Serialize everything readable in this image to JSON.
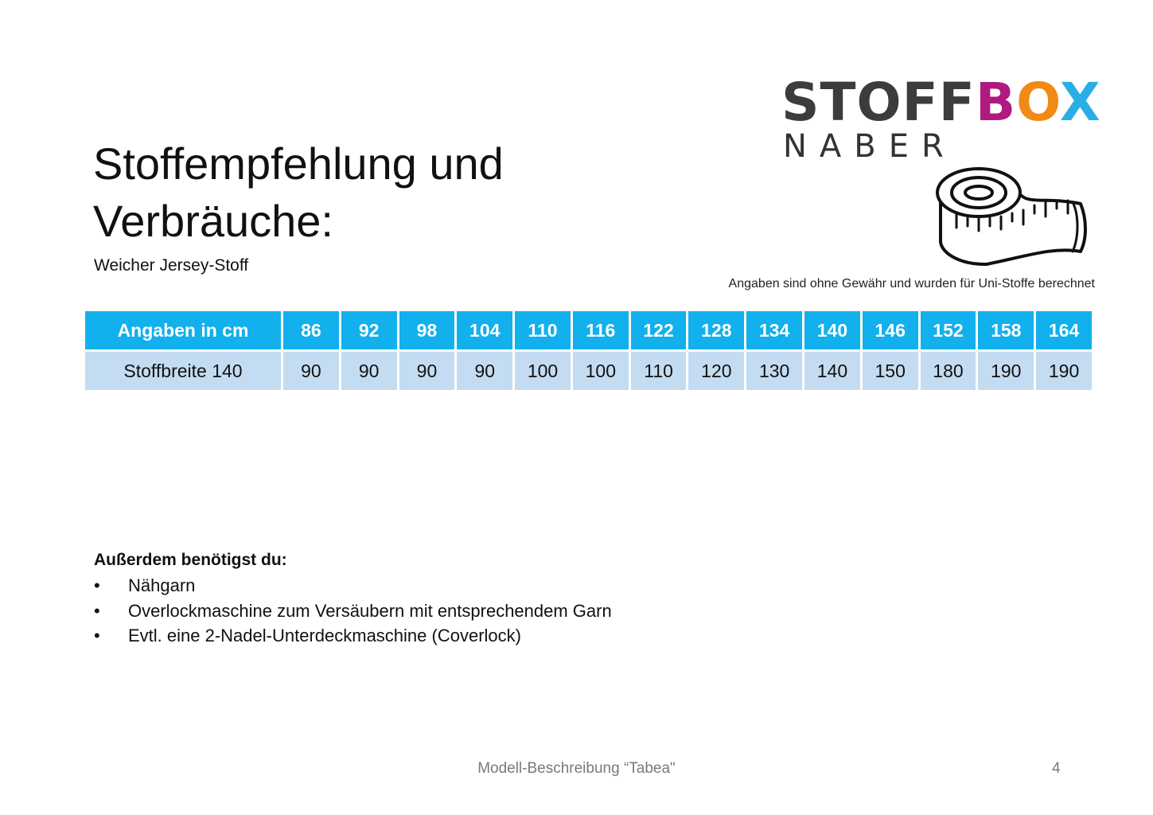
{
  "logo": {
    "parts": [
      {
        "text": "STOFF",
        "color": "#3c3c3c"
      },
      {
        "text": "B",
        "color": "#b0197f"
      },
      {
        "text": "O",
        "color": "#f08a14"
      },
      {
        "text": "X",
        "color": "#2aaee6"
      }
    ],
    "subtitle": "NABER",
    "icon": "measuring-tape-icon"
  },
  "title": {
    "line1": "Stoffempfehlung und",
    "line2": "Verbräuche:"
  },
  "subtitle": "Weicher Jersey-Stoff",
  "disclaimer": "Angaben sind ohne Gewähr und wurden für Uni-Stoffe berechnet",
  "table": {
    "header_label": "Angaben in cm",
    "sizes": [
      "86",
      "92",
      "98",
      "104",
      "110",
      "116",
      "122",
      "128",
      "134",
      "140",
      "146",
      "152",
      "158",
      "164"
    ],
    "row_label": "Stoffbreite 140",
    "values": [
      "90",
      "90",
      "90",
      "90",
      "100",
      "100",
      "110",
      "120",
      "130",
      "140",
      "150",
      "180",
      "190",
      "190"
    ],
    "header_color": "#12b0ec",
    "row_color": "#c4dcf1"
  },
  "extras": {
    "heading": "Außerdem benötigst du:",
    "bullet": "•",
    "items": [
      "Nähgarn",
      "Overlockmaschine zum Versäubern mit entsprechendem Garn",
      "Evtl. eine 2-Nadel-Unterdeckmaschine (Coverlock)"
    ]
  },
  "footer": {
    "center": "Modell-Beschreibung “Tabea\"",
    "page": "4"
  }
}
